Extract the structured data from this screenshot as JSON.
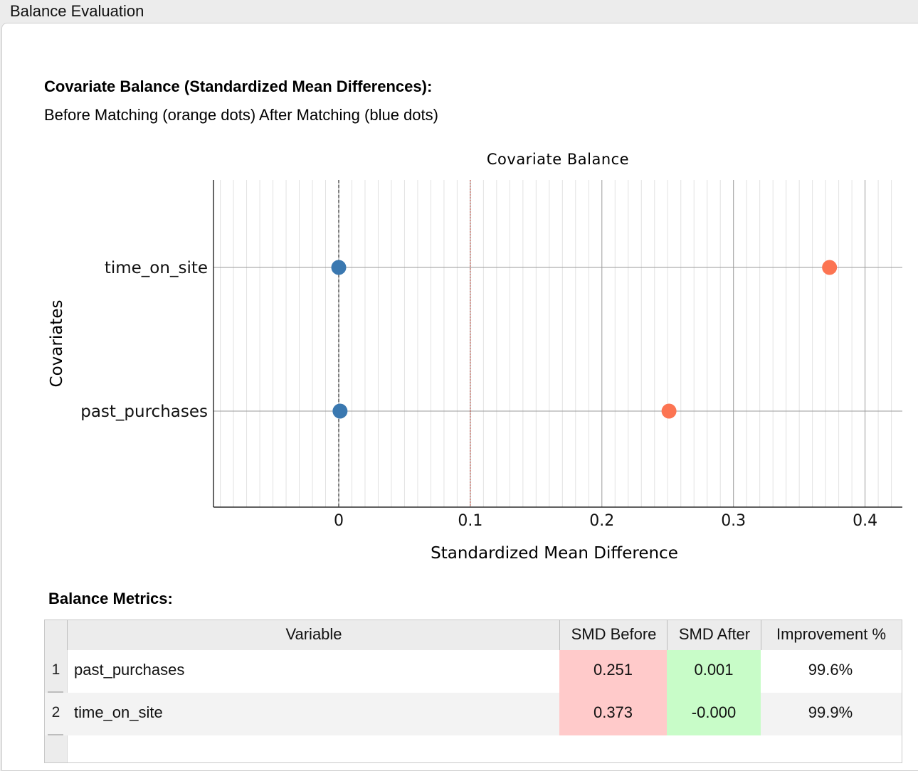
{
  "window": {
    "tab_title": "Balance Evaluation"
  },
  "section": {
    "heading": "Covariate Balance (Standardized Mean Differences):",
    "subheading": "Before Matching (orange dots) After Matching (blue dots)"
  },
  "chart_data": {
    "type": "scatter",
    "title": "Covariate Balance",
    "xlabel": "Standardized Mean Difference",
    "ylabel": "Covariates",
    "xlim": [
      -0.095,
      0.425
    ],
    "xticks": [
      "0",
      "0.1",
      "0.2",
      "0.3",
      "0.4"
    ],
    "categories": [
      "time_on_site",
      "past_purchases"
    ],
    "series": [
      {
        "label": "Before Matching",
        "color": "#fc7452",
        "values": [
          0.373,
          0.251
        ]
      },
      {
        "label": "After Matching",
        "color": "#3a78b0",
        "values": [
          0.0,
          0.001
        ]
      }
    ],
    "reference_lines": [
      {
        "x": 0,
        "style": "dashed",
        "color": "#000000"
      },
      {
        "x": 0.1,
        "style": "dotted",
        "color": "#c0392b"
      }
    ],
    "grid": true
  },
  "metrics": {
    "heading": "Balance Metrics:",
    "columns": [
      "Variable",
      "SMD Before",
      "SMD After",
      "Improvement %"
    ],
    "rows": [
      {
        "num": "1",
        "variable": "past_purchases",
        "smd_before": "0.251",
        "smd_after": "0.001",
        "improvement": "99.6%"
      },
      {
        "num": "2",
        "variable": "time_on_site",
        "smd_before": "0.373",
        "smd_after": "-0.000",
        "improvement": "99.9%"
      }
    ]
  },
  "colors": {
    "before_cell": "#ffcaca",
    "after_cell": "#c8fcc8",
    "before_dot": "#fc7452",
    "after_dot": "#3a78b0"
  }
}
